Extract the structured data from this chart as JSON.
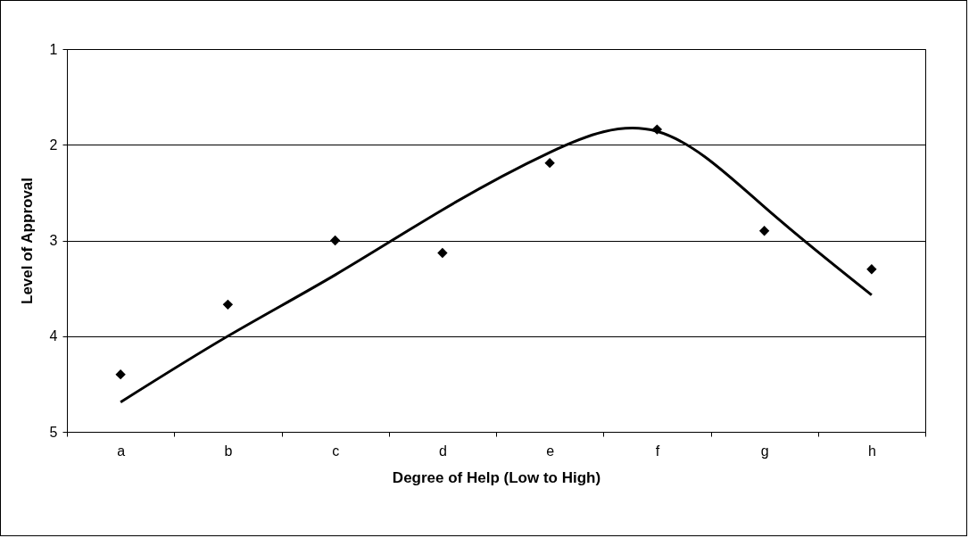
{
  "chart_data": {
    "type": "scatter",
    "xlabel": "Degree of Help (Low to High)",
    "ylabel": "Level of Approval",
    "categories": [
      "a",
      "b",
      "c",
      "d",
      "e",
      "f",
      "g",
      "h"
    ],
    "series": [
      {
        "color": "#000000",
        "marker": "diamond",
        "values": [
          4.4,
          3.67,
          3.0,
          3.13,
          2.19,
          1.84,
          2.9,
          3.3
        ]
      },
      {
        "type": "line",
        "color": "#000000",
        "line_style": "solid",
        "marker": "none",
        "x": [
          "a",
          "b",
          "c",
          "d",
          "e",
          "f",
          "g",
          "h"
        ],
        "values": [
          4.69,
          4.0,
          3.36,
          2.68,
          2.08,
          1.86,
          2.65,
          3.57
        ]
      }
    ],
    "ylim": [
      5,
      1
    ],
    "yticks": [
      1,
      2,
      3,
      4,
      5
    ],
    "grid": "y"
  }
}
